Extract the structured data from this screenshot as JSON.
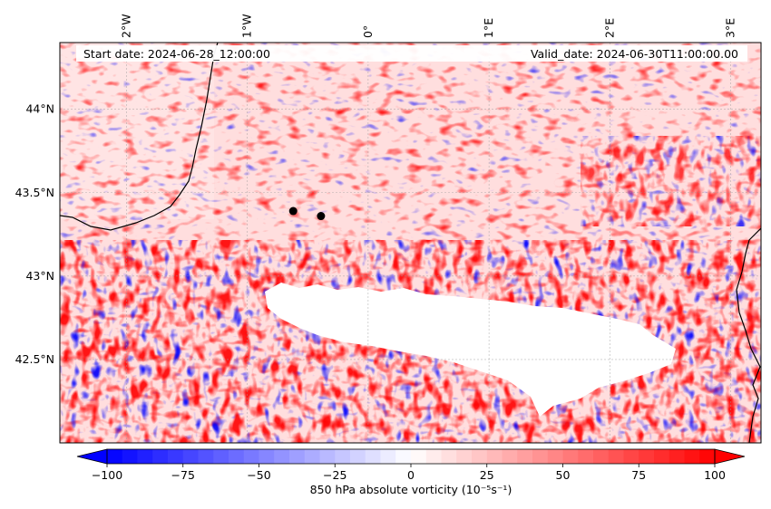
{
  "map": {
    "start_label": "Start date: 2024-06-28_12:00:00",
    "valid_label": "Valid_date: 2024-06-30T11:00:00.00",
    "lon_labels": [
      "2°W",
      "1°W",
      "0°",
      "1°E",
      "2°E",
      "3°E"
    ],
    "lon_values": [
      -2,
      -1,
      0,
      1,
      2,
      3
    ],
    "lat_labels": [
      "44°N",
      "43.5°N",
      "43°N",
      "42.5°N"
    ],
    "lat_values": [
      44.0,
      43.5,
      43.0,
      42.5
    ],
    "lon_range": [
      -2.55,
      3.25
    ],
    "lat_range": [
      42.0,
      44.4
    ],
    "markers": [
      {
        "lon": -0.62,
        "lat": 43.39
      },
      {
        "lon": -0.39,
        "lat": 43.36
      }
    ],
    "field_colors": {
      "negative": "#0000ff",
      "neutral": "#ffffff",
      "positive": "#ff0000",
      "coast": "#000000"
    }
  },
  "colorbar": {
    "label": "850 hPa absolute vorticity (10⁻⁵s⁻¹)",
    "min": -100,
    "max": 100,
    "ticks": [
      "−100",
      "−75",
      "−50",
      "−25",
      "0",
      "25",
      "50",
      "75",
      "100"
    ],
    "tick_values": [
      -100,
      -75,
      -50,
      -25,
      0,
      25,
      50,
      75,
      100
    ],
    "levels": 40
  }
}
